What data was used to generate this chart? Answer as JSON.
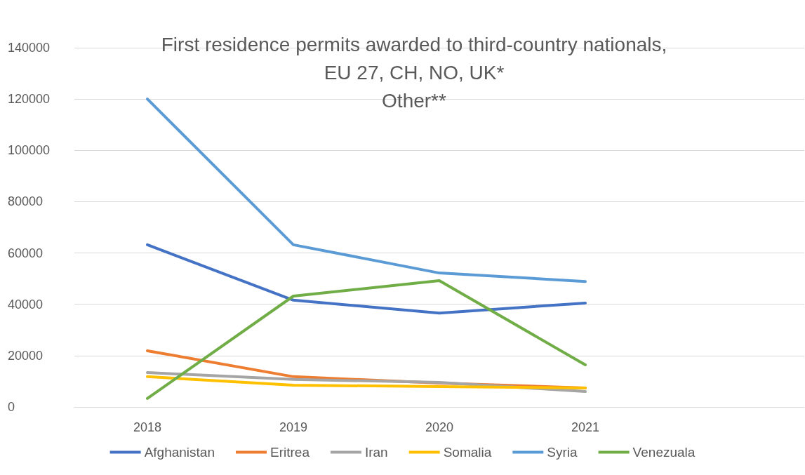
{
  "chart_data": {
    "type": "line",
    "title": "First residence permits awarded to third-country nationals,\nEU 27, CH, NO, UK*\nOther**",
    "categories": [
      "2018",
      "2019",
      "2020",
      "2021",
      null
    ],
    "series": [
      {
        "name": "Afghanistan",
        "color": "#4472c4",
        "values": [
          63200,
          41600,
          36600,
          40500,
          null
        ]
      },
      {
        "name": "Eritrea",
        "color": "#ed7d31",
        "values": [
          21900,
          11800,
          9300,
          7400,
          null
        ]
      },
      {
        "name": "Iran",
        "color": "#a5a5a5",
        "values": [
          13400,
          10700,
          9600,
          6000,
          null
        ]
      },
      {
        "name": "Somalia",
        "color": "#ffc000",
        "values": [
          11800,
          8500,
          7900,
          7400,
          null
        ]
      },
      {
        "name": "Syria",
        "color": "#5b9bd5",
        "values": [
          120000,
          63200,
          52200,
          48900,
          null
        ]
      },
      {
        "name": "Venezuala",
        "color": "#70ad47",
        "values": [
          3300,
          43200,
          49200,
          16400,
          null
        ]
      }
    ],
    "ylim": [
      0,
      140000
    ],
    "yticks": [
      0,
      20000,
      40000,
      60000,
      80000,
      100000,
      120000,
      140000
    ],
    "grid": "y",
    "legend": "bottom",
    "marker": "none",
    "line_style": "solid"
  }
}
